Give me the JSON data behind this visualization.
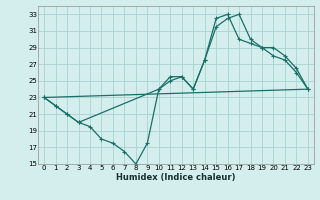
{
  "xlabel": "Humidex (Indice chaleur)",
  "bg_color": "#d4eeed",
  "grid_color": "#a8d4d0",
  "line_color": "#1a7068",
  "ylim": [
    15,
    34
  ],
  "xlim": [
    -0.5,
    23.5
  ],
  "yticks": [
    15,
    17,
    19,
    21,
    23,
    25,
    27,
    29,
    31,
    33
  ],
  "xticks": [
    0,
    1,
    2,
    3,
    4,
    5,
    6,
    7,
    8,
    9,
    10,
    11,
    12,
    13,
    14,
    15,
    16,
    17,
    18,
    19,
    20,
    21,
    22,
    23
  ],
  "line1_x": [
    0,
    1,
    2,
    3,
    4,
    5,
    6,
    7,
    8,
    9,
    10,
    11,
    12,
    13,
    14,
    15,
    16,
    17,
    18,
    19,
    20,
    21,
    22,
    23
  ],
  "line1_y": [
    23,
    22,
    21,
    20,
    19.5,
    18,
    17.5,
    16.5,
    15,
    17.5,
    24,
    25.5,
    25.5,
    24,
    27.5,
    31.5,
    32.5,
    33,
    30,
    29,
    28,
    27.5,
    26,
    24
  ],
  "line2_x": [
    0,
    1,
    2,
    3,
    10,
    11,
    12,
    13,
    14,
    15,
    16,
    17,
    18,
    19,
    20,
    21,
    22,
    23
  ],
  "line2_y": [
    23,
    22,
    21,
    20,
    24,
    25,
    25.5,
    24,
    27.5,
    32.5,
    33,
    30,
    29.5,
    29,
    29,
    28,
    26.5,
    24
  ],
  "line3_x": [
    0,
    23
  ],
  "line3_y": [
    23,
    24
  ]
}
